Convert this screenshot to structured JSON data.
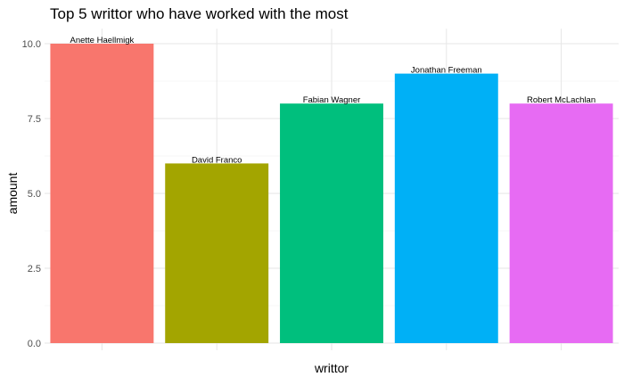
{
  "chart_data": {
    "type": "bar",
    "title": "Top 5 writtor who have worked with the most",
    "xlabel": "writtor",
    "ylabel": "amount",
    "categories": [
      "Anette Haellmigk",
      "David Franco",
      "Fabian Wagner",
      "Jonathan Freeman",
      "Robert McLachlan"
    ],
    "values": [
      10,
      6,
      8,
      9,
      8
    ],
    "colors": [
      "#F8766D",
      "#A3A500",
      "#00BF7D",
      "#00B0F6",
      "#E76BF3"
    ],
    "ylim": [
      0,
      10.5
    ],
    "yticks": [
      0,
      2.5,
      5,
      7.5,
      10
    ],
    "ytick_labels": [
      "0.0",
      "2.5",
      "5.0",
      "7.5",
      "10.0"
    ],
    "grid": true,
    "x_tick_labels_shown": false,
    "legend": "none"
  }
}
